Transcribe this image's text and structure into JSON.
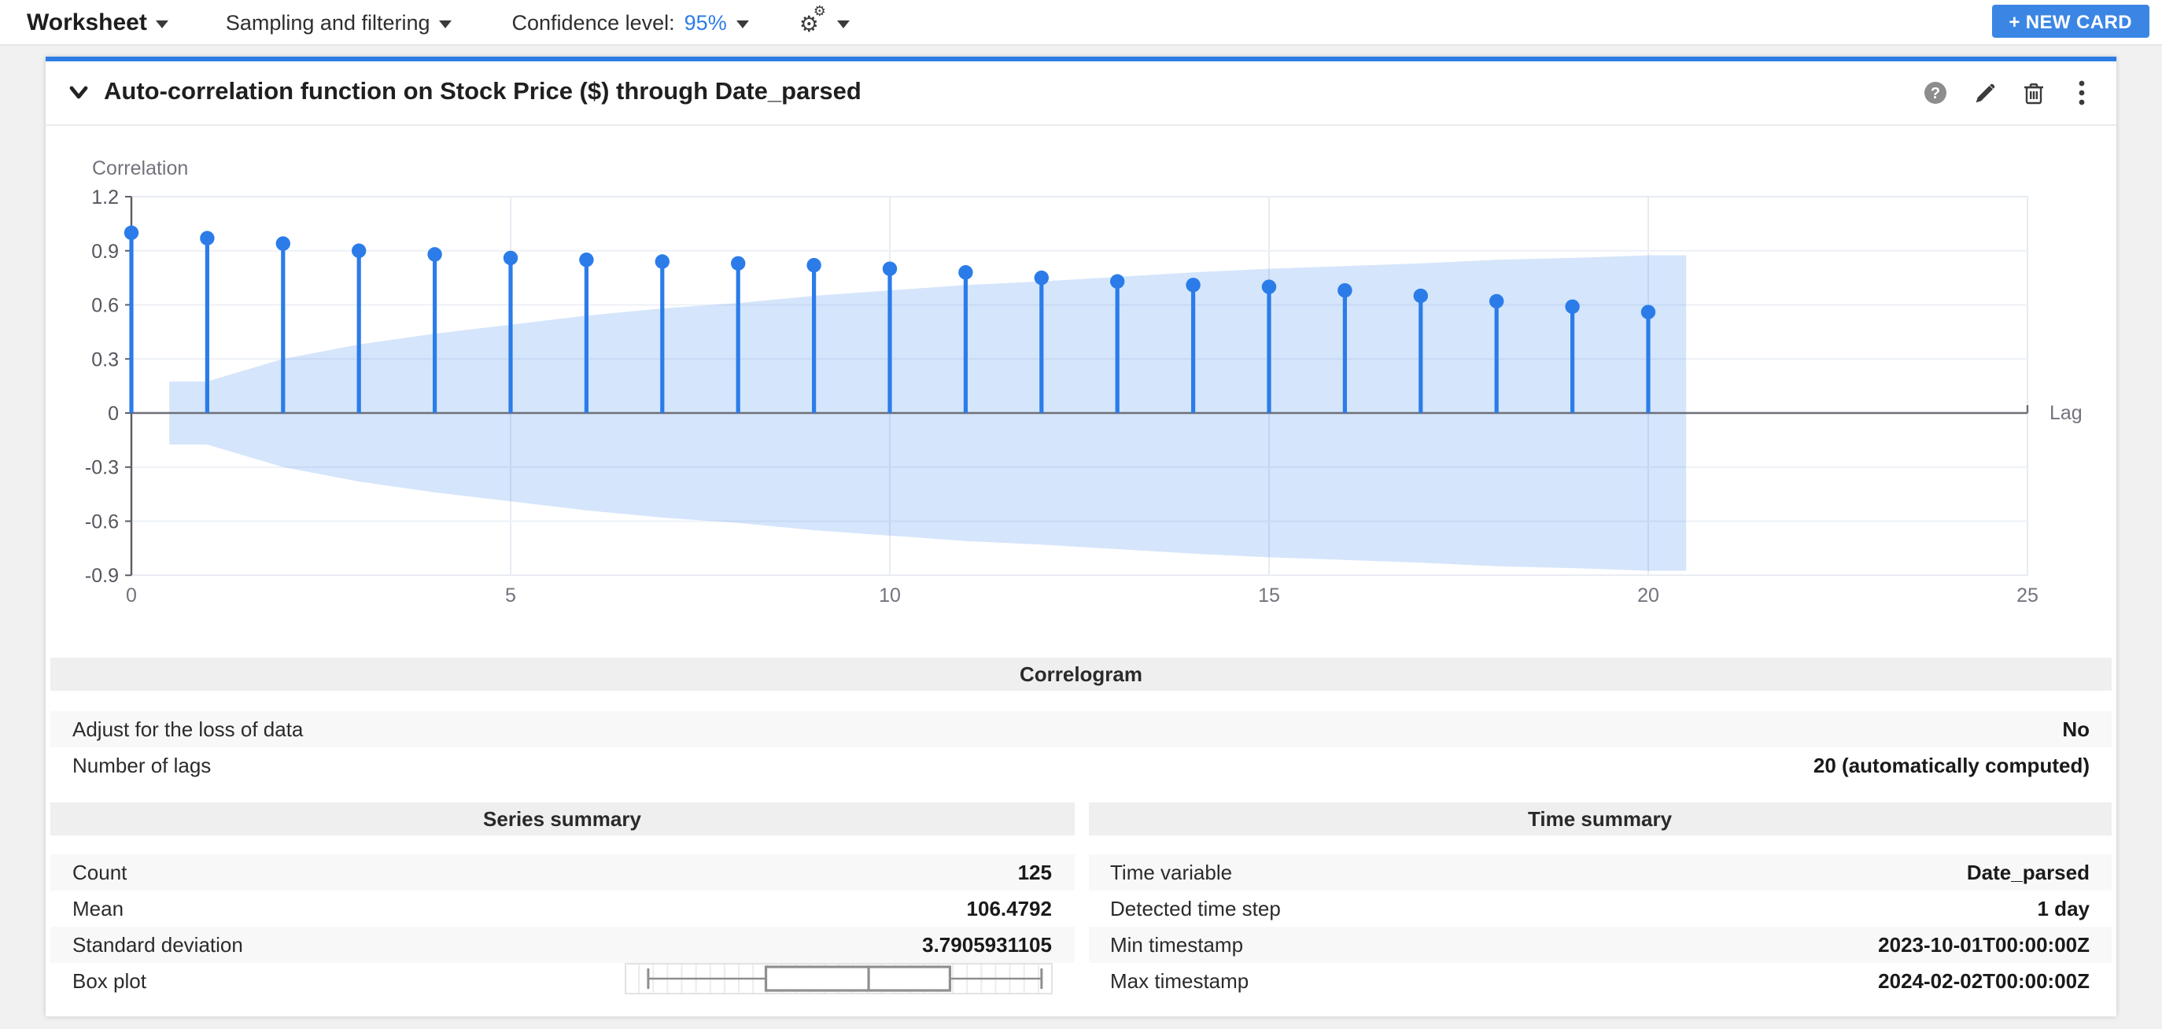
{
  "toolbar": {
    "worksheet_label": "Worksheet",
    "sampling_label": "Sampling and filtering",
    "confidence_label": "Confidence level:",
    "confidence_value": "95%",
    "new_card_label": "+ NEW CARD"
  },
  "card": {
    "title": "Auto-correlation function on Stock Price ($) through Date_parsed"
  },
  "chart_data": {
    "type": "stem",
    "subtype": "autocorrelation",
    "ylabel": "Correlation",
    "xlabel": "Lag",
    "x": [
      0,
      1,
      2,
      3,
      4,
      5,
      6,
      7,
      8,
      9,
      10,
      11,
      12,
      13,
      14,
      15,
      16,
      17,
      18,
      19,
      20
    ],
    "acf_values": [
      1.0,
      0.97,
      0.94,
      0.9,
      0.88,
      0.86,
      0.85,
      0.84,
      0.83,
      0.82,
      0.8,
      0.78,
      0.75,
      0.73,
      0.71,
      0.7,
      0.68,
      0.65,
      0.62,
      0.59,
      0.56
    ],
    "confidence_band": {
      "level": "95%",
      "x_start": 0.5,
      "x_end": 20.5,
      "half_width_per_lag": [
        0.175,
        0.3,
        0.38,
        0.44,
        0.49,
        0.54,
        0.58,
        0.61,
        0.65,
        0.68,
        0.71,
        0.73,
        0.755,
        0.78,
        0.8,
        0.815,
        0.83,
        0.85,
        0.86,
        0.875
      ]
    },
    "xlim": [
      0,
      25
    ],
    "ylim": [
      -0.9,
      1.2
    ],
    "xticks": [
      0,
      5,
      10,
      15,
      20,
      25
    ],
    "yticks": [
      1.2,
      0.9,
      0.6,
      0.3,
      0,
      -0.3,
      -0.6,
      -0.9
    ],
    "grid": true,
    "stem_color": "#2b7ce9",
    "band_color": "rgba(43,124,233,0.20)"
  },
  "correlogram": {
    "header": "Correlogram",
    "rows": [
      {
        "label": "Adjust for the loss of data",
        "value": "No"
      },
      {
        "label": "Number of lags",
        "value": "20 (automatically computed)"
      }
    ]
  },
  "series_summary": {
    "header": "Series summary",
    "rows": [
      {
        "label": "Count",
        "value": "125"
      },
      {
        "label": "Mean",
        "value": "106.4792"
      },
      {
        "label": "Standard deviation",
        "value": "3.7905931105"
      },
      {
        "label": "Box plot",
        "value": ""
      }
    ],
    "boxplot": {
      "whisker_low_pct": 5.5,
      "box_low_pct": 33,
      "median_pct": 57,
      "box_high_pct": 76,
      "whisker_high_pct": 97.4
    }
  },
  "time_summary": {
    "header": "Time summary",
    "rows": [
      {
        "label": "Time variable",
        "value": "Date_parsed"
      },
      {
        "label": "Detected time step",
        "value": "1 day"
      },
      {
        "label": "Min timestamp",
        "value": "2023-10-01T00:00:00Z"
      },
      {
        "label": "Max timestamp",
        "value": "2024-02-02T00:00:00Z"
      }
    ]
  },
  "colors": {
    "accent_blue": "#2d7ce5",
    "button_blue": "#3b86e4",
    "stem_blue": "#2b7ce9",
    "page_bg": "#f1f1f2",
    "stripe_bg": "#f8f8f8",
    "section_header_bg": "#efeff0"
  }
}
